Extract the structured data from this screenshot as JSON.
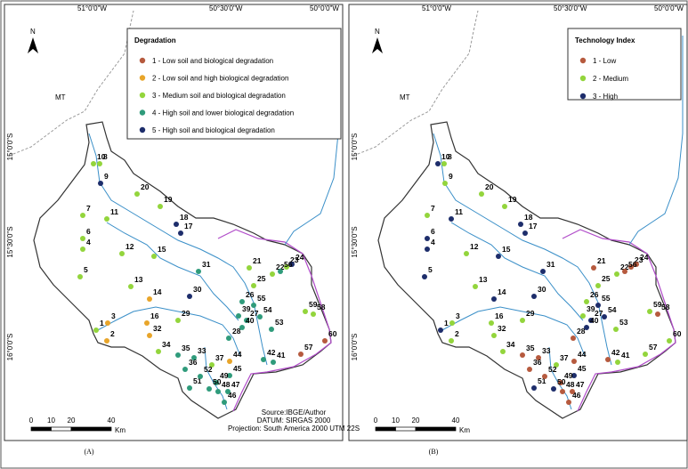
{
  "panels": [
    {
      "label": "(A)",
      "north": "N",
      "state": "MT",
      "legend": {
        "title": "Degradation",
        "items": [
          {
            "key": "1",
            "label": "1 - Low soil and biological degradation"
          },
          {
            "key": "2",
            "label": "2 - Low soil and high biological degradation"
          },
          {
            "key": "3",
            "label": "3 - Medium soil and biological degradation"
          },
          {
            "key": "4",
            "label": "4 - High soil and lower biological degradation"
          },
          {
            "key": "5",
            "label": "5 - High soil and biological degradation"
          }
        ]
      },
      "lon_labels": [
        "51°0'0\"W",
        "50°30'0\"W",
        "50°0'0\"W"
      ],
      "lat_labels": [
        "15°0'0\"S",
        "15°30'0\"S",
        "16°0'0\"S"
      ],
      "source": [
        "Source:IBGE/Author",
        "DATUM: SIRGAS 2000",
        "Projection: South America 2000 UTM 22S"
      ],
      "scale": {
        "ticks": [
          0,
          10,
          20,
          40
        ],
        "unit": "Km"
      },
      "points": [
        {
          "label": "1",
          "class": 3
        },
        {
          "label": "2",
          "class": 2
        },
        {
          "label": "3",
          "class": 2
        },
        {
          "label": "4",
          "class": 3
        },
        {
          "label": "5",
          "class": 3
        },
        {
          "label": "6",
          "class": 3
        },
        {
          "label": "7",
          "class": 3
        },
        {
          "label": "8",
          "class": 3
        },
        {
          "label": "9",
          "class": 5
        },
        {
          "label": "10",
          "class": 3
        },
        {
          "label": "11",
          "class": 3
        },
        {
          "label": "12",
          "class": 3
        },
        {
          "label": "13",
          "class": 3
        },
        {
          "label": "14",
          "class": 2
        },
        {
          "label": "15",
          "class": 3
        },
        {
          "label": "16",
          "class": 2
        },
        {
          "label": "17",
          "class": 5
        },
        {
          "label": "18",
          "class": 5
        },
        {
          "label": "19",
          "class": 3
        },
        {
          "label": "20",
          "class": 3
        },
        {
          "label": "21",
          "class": 3
        },
        {
          "label": "22",
          "class": 3
        },
        {
          "label": "23",
          "class": 3
        },
        {
          "label": "24",
          "class": 5
        },
        {
          "label": "25",
          "class": 3
        },
        {
          "label": "26",
          "class": 4
        },
        {
          "label": "27",
          "class": 4
        },
        {
          "label": "28",
          "class": 4
        },
        {
          "label": "29",
          "class": 3
        },
        {
          "label": "30",
          "class": 5
        },
        {
          "label": "31",
          "class": 4
        },
        {
          "label": "32",
          "class": 2
        },
        {
          "label": "33",
          "class": 4
        },
        {
          "label": "34",
          "class": 3
        },
        {
          "label": "35",
          "class": 4
        },
        {
          "label": "36",
          "class": 4
        },
        {
          "label": "37",
          "class": 3
        },
        {
          "label": "39",
          "class": 4
        },
        {
          "label": "40",
          "class": 4
        },
        {
          "label": "41",
          "class": 4
        },
        {
          "label": "42",
          "class": 4
        },
        {
          "label": "44",
          "class": 2
        },
        {
          "label": "45",
          "class": 4
        },
        {
          "label": "46",
          "class": 4
        },
        {
          "label": "47",
          "class": 4
        },
        {
          "label": "48",
          "class": 4
        },
        {
          "label": "49",
          "class": 4
        },
        {
          "label": "50",
          "class": 4
        },
        {
          "label": "51",
          "class": 4
        },
        {
          "label": "52",
          "class": 4
        },
        {
          "label": "53",
          "class": 4
        },
        {
          "label": "54",
          "class": 4
        },
        {
          "label": "55",
          "class": 4
        },
        {
          "label": "56",
          "class": 4
        },
        {
          "label": "57",
          "class": 1
        },
        {
          "label": "58",
          "class": 3
        },
        {
          "label": "59",
          "class": 3
        },
        {
          "label": "60",
          "class": 1
        }
      ]
    },
    {
      "label": "(B)",
      "north": "N",
      "state": "MT",
      "legend": {
        "title": "Technology Index",
        "items": [
          {
            "key": "1",
            "label": "1 -  Low"
          },
          {
            "key": "2",
            "label": "2 - Medium"
          },
          {
            "key": "3",
            "label": "3 - High"
          }
        ]
      },
      "lon_labels": [
        "51°0'0\"W",
        "50°30'0\"W",
        "50°0'0\"W"
      ],
      "lat_labels": [
        "15°0'0\"S",
        "15°30'0\"S",
        "16°0'0\"S"
      ],
      "source": [],
      "scale": {
        "ticks": [
          0,
          10,
          20,
          40
        ],
        "unit": "Km"
      },
      "points": [
        {
          "label": "1",
          "class": 3
        },
        {
          "label": "2",
          "class": 2
        },
        {
          "label": "3",
          "class": 2
        },
        {
          "label": "4",
          "class": 3
        },
        {
          "label": "5",
          "class": 3
        },
        {
          "label": "6",
          "class": 3
        },
        {
          "label": "7",
          "class": 2
        },
        {
          "label": "8",
          "class": 2
        },
        {
          "label": "9",
          "class": 2
        },
        {
          "label": "10",
          "class": 3
        },
        {
          "label": "11",
          "class": 3
        },
        {
          "label": "12",
          "class": 2
        },
        {
          "label": "13",
          "class": 2
        },
        {
          "label": "14",
          "class": 3
        },
        {
          "label": "15",
          "class": 3
        },
        {
          "label": "16",
          "class": 2
        },
        {
          "label": "17",
          "class": 3
        },
        {
          "label": "18",
          "class": 3
        },
        {
          "label": "19",
          "class": 2
        },
        {
          "label": "20",
          "class": 2
        },
        {
          "label": "21",
          "class": 1
        },
        {
          "label": "22",
          "class": 2
        },
        {
          "label": "23",
          "class": 1
        },
        {
          "label": "24",
          "class": 1
        },
        {
          "label": "25",
          "class": 2
        },
        {
          "label": "26",
          "class": 2
        },
        {
          "label": "27",
          "class": 3
        },
        {
          "label": "28",
          "class": 1
        },
        {
          "label": "29",
          "class": 2
        },
        {
          "label": "30",
          "class": 3
        },
        {
          "label": "31",
          "class": 3
        },
        {
          "label": "32",
          "class": 2
        },
        {
          "label": "33",
          "class": 1
        },
        {
          "label": "34",
          "class": 2
        },
        {
          "label": "35",
          "class": 1
        },
        {
          "label": "36",
          "class": 1
        },
        {
          "label": "37",
          "class": 2
        },
        {
          "label": "39",
          "class": 2
        },
        {
          "label": "40",
          "class": 3
        },
        {
          "label": "41",
          "class": 2
        },
        {
          "label": "42",
          "class": 1
        },
        {
          "label": "44",
          "class": 1
        },
        {
          "label": "45",
          "class": 3
        },
        {
          "label": "46",
          "class": 1
        },
        {
          "label": "47",
          "class": 1
        },
        {
          "label": "48",
          "class": 1
        },
        {
          "label": "49",
          "class": 1
        },
        {
          "label": "50",
          "class": 3
        },
        {
          "label": "51",
          "class": 3
        },
        {
          "label": "52",
          "class": 1
        },
        {
          "label": "53",
          "class": 2
        },
        {
          "label": "54",
          "class": 3
        },
        {
          "label": "55",
          "class": 3
        },
        {
          "label": "56",
          "class": 1
        },
        {
          "label": "57",
          "class": 2
        },
        {
          "label": "58",
          "class": 1
        },
        {
          "label": "59",
          "class": 2
        },
        {
          "label": "60",
          "class": 2
        }
      ]
    }
  ]
}
